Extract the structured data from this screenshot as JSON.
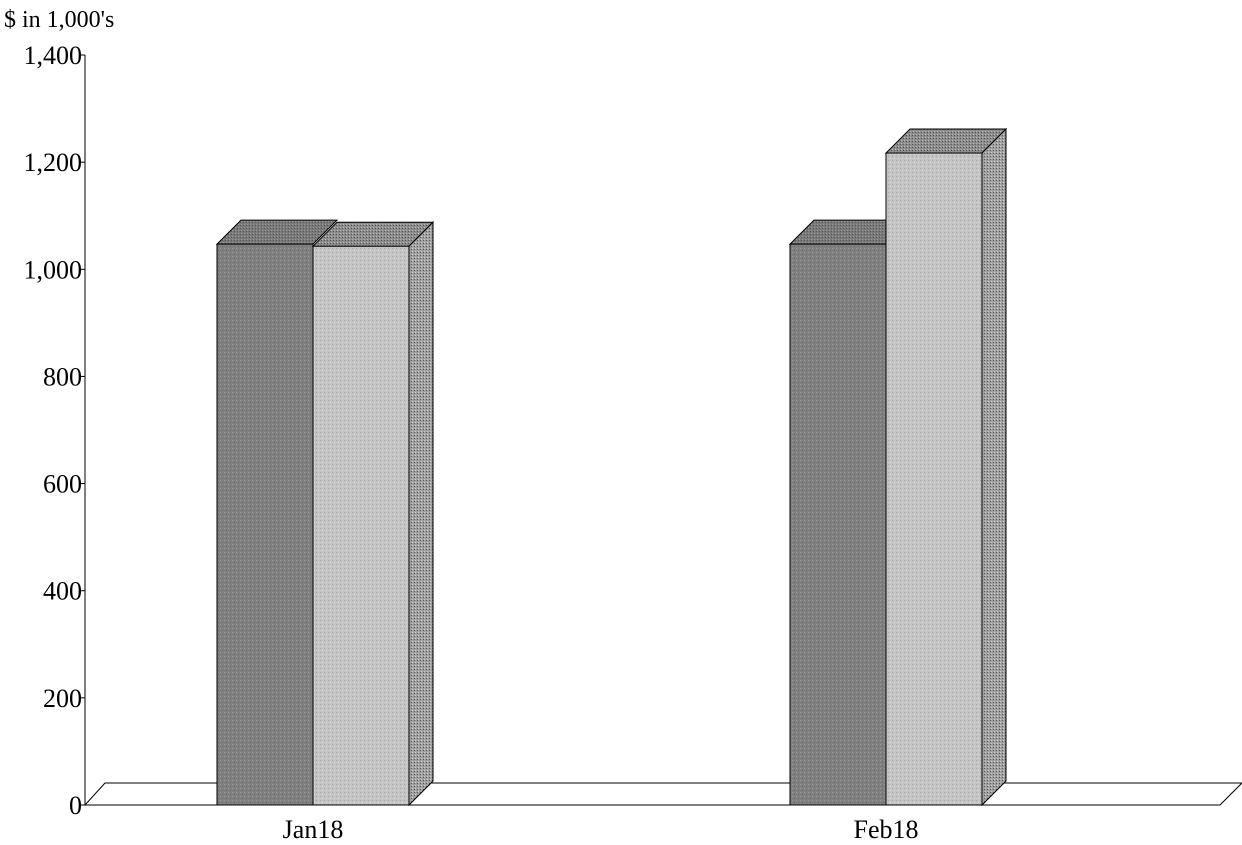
{
  "chart_data": {
    "type": "bar",
    "ylabel": "$ in 1,000's",
    "categories": [
      "Jan18",
      "Feb18"
    ],
    "series": [
      {
        "values": [
          1047,
          1047
        ]
      },
      {
        "values": [
          1043,
          1217
        ]
      }
    ],
    "ylim": [
      0,
      1400
    ],
    "yticks": [
      0,
      200,
      400,
      600,
      800,
      1000,
      1200,
      1400
    ],
    "ytick_labels": [
      "0",
      "200",
      "400",
      "600",
      "800",
      "1,000",
      "1,200",
      "1,400"
    ],
    "grid": false,
    "legend": "none",
    "style": "3d-clustered-column",
    "colors": {
      "series_0": "#808080",
      "series_1": "#c0c0c0",
      "series_0_top": "#6e6e6e",
      "series_1_top": "#8c8c8c",
      "series_1_side": "#9a9a9a",
      "outline": "#000000"
    }
  }
}
